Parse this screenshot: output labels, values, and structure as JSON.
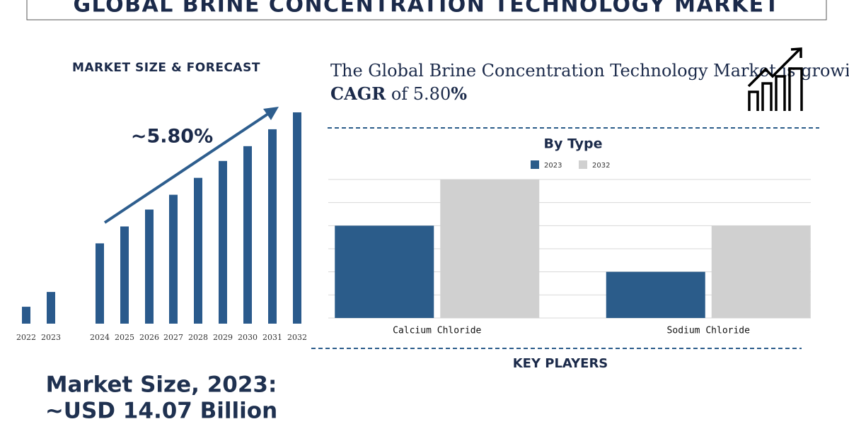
{
  "title": "GLOBAL BRINE CONCENTRATION TECHNOLOGY MARKET",
  "left_heading": "MARKET SIZE & FORECAST",
  "growth_label": "~5.80%",
  "statement": {
    "lead": "The Global Brine Concentration Technology Market is growing at a",
    "bold1": "CAGR",
    "mid": "of 5.80",
    "bold2": "%"
  },
  "market_size": {
    "line1": "Market Size, 2023:",
    "line2": "~USD 14.07 Billion"
  },
  "key_players": "KEY PLAYERS",
  "chart_data": [
    {
      "type": "bar",
      "categories": [
        "2022",
        "2023",
        "2024",
        "2025",
        "2026",
        "2027",
        "2028",
        "2029",
        "2030",
        "2031",
        "2032"
      ],
      "values": [
        8,
        15,
        38,
        46,
        54,
        61,
        69,
        77,
        84,
        92,
        100
      ],
      "color": "#2a5a8c",
      "ylim": [
        0,
        100
      ]
    },
    {
      "type": "grouped-bar",
      "title": "By Type",
      "categories": [
        "Calcium Chloride",
        "Sodium Chloride"
      ],
      "series": [
        {
          "name": "2023",
          "color": "#2b5c8a",
          "values": [
            4,
            2
          ]
        },
        {
          "name": "2032",
          "color": "#d0d0d0",
          "values": [
            6,
            4
          ]
        }
      ],
      "ylim": [
        0,
        6
      ],
      "yticks": [
        0,
        1,
        2,
        3,
        4,
        5,
        6
      ],
      "grid": true,
      "legend": "top"
    }
  ]
}
